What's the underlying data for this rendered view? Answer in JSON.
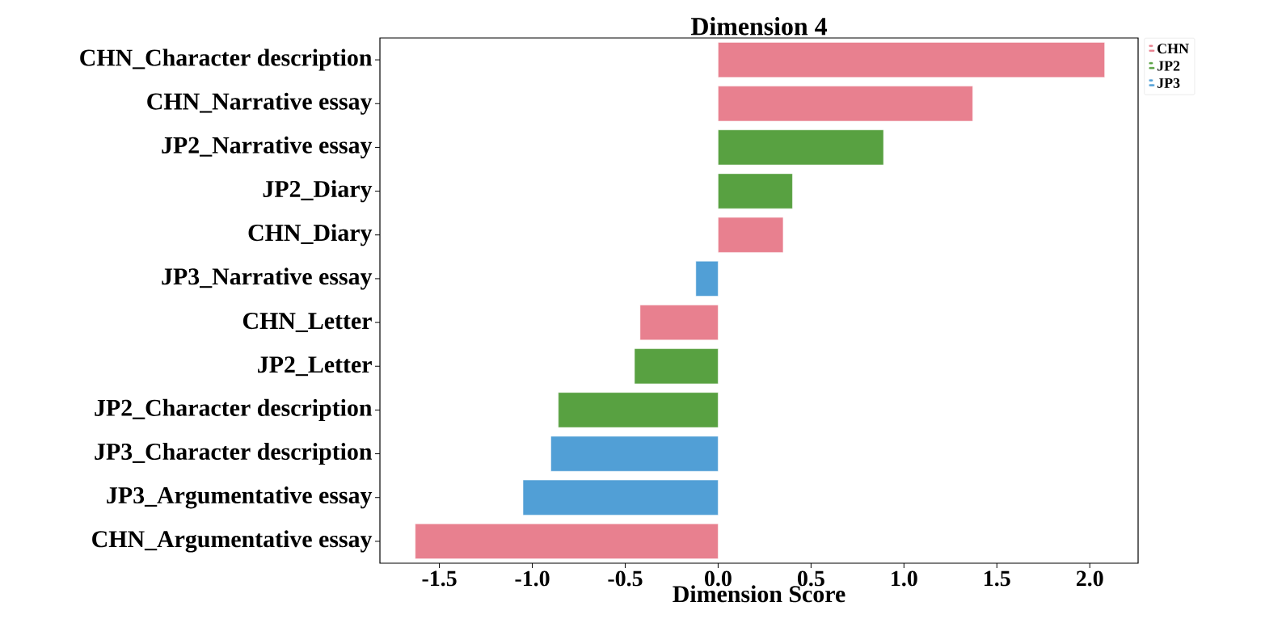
{
  "chart_data": {
    "type": "bar",
    "orientation": "horizontal",
    "title": "Dimension 4",
    "xlabel": "Dimension Score",
    "categories": [
      "CHN_Character description",
      "CHN_Narrative essay",
      "JP2_Narrative essay",
      "JP2_Diary",
      "CHN_Diary",
      "JP3_Narrative essay",
      "CHN_Letter",
      "JP2_Letter",
      "JP2_Character description",
      "JP3_Character description",
      "JP3_Argumentative essay",
      "CHN_Argumentative essay"
    ],
    "series": [
      {
        "name": "CHN",
        "color": "#e8808f",
        "values": [
          2.08,
          1.37,
          null,
          null,
          0.35,
          null,
          -0.42,
          null,
          null,
          null,
          null,
          -1.63
        ]
      },
      {
        "name": "JP2",
        "color": "#58a141",
        "values": [
          null,
          null,
          0.89,
          0.4,
          null,
          null,
          null,
          -0.45,
          -0.86,
          null,
          null,
          null
        ]
      },
      {
        "name": "JP3",
        "color": "#519fd6",
        "values": [
          null,
          null,
          null,
          null,
          null,
          -0.12,
          null,
          null,
          null,
          -0.9,
          -1.05,
          null
        ]
      }
    ],
    "xlim": [
      -1.82,
      2.26
    ],
    "xticks": [
      -1.5,
      {
        "value": -1.0,
        "label": "-1.0"
      },
      -0.5,
      {
        "value": 0.0,
        "label": "0.0"
      },
      0.5,
      {
        "value": 1.0,
        "label": "1.0"
      },
      1.5,
      {
        "value": 2.0,
        "label": "2.0"
      }
    ],
    "legend": "top right"
  }
}
